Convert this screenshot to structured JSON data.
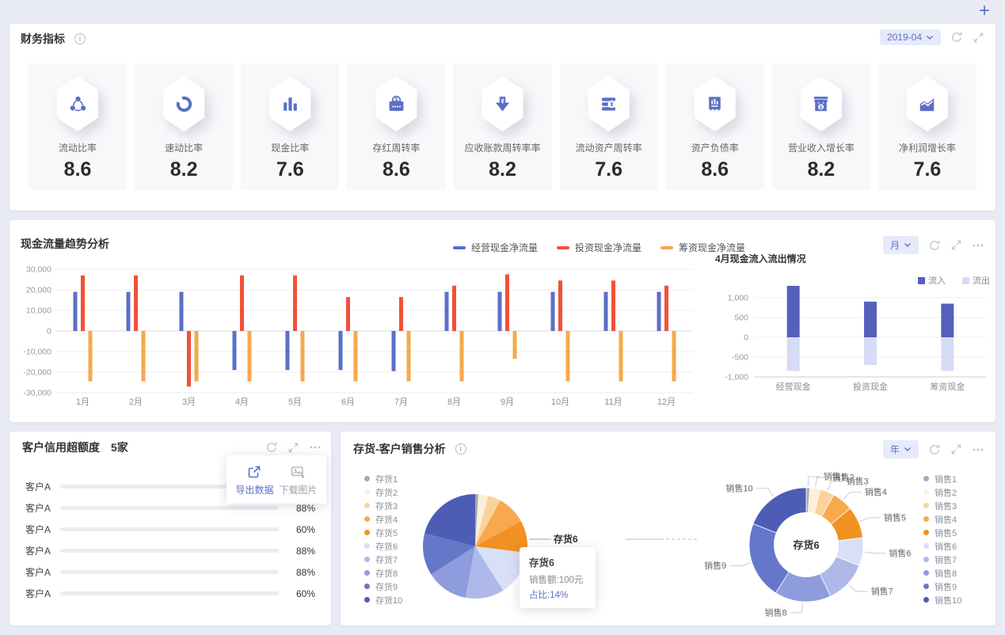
{
  "page": {
    "add_button": "+"
  },
  "kpi_panel": {
    "title": "财务指标",
    "period": "2019-04",
    "cards": [
      {
        "label": "流动比率",
        "value": "8.6",
        "icon": "share-network-icon"
      },
      {
        "label": "速动比率",
        "value": "8.2",
        "icon": "sync-icon"
      },
      {
        "label": "现金比率",
        "value": "7.6",
        "icon": "bar-chart-icon"
      },
      {
        "label": "存红周转率",
        "value": "8.6",
        "icon": "wallet-icon"
      },
      {
        "label": "应收账款周转率率",
        "value": "8.2",
        "icon": "arrow-down-yen-icon"
      },
      {
        "label": "流动资产周转率",
        "value": "7.6",
        "icon": "coins-yen-icon"
      },
      {
        "label": "资产负债率",
        "value": "8.6",
        "icon": "receipt-icon"
      },
      {
        "label": "营业收入增长率",
        "value": "8.2",
        "icon": "shop-icon"
      },
      {
        "label": "净利润增长率",
        "value": "7.6",
        "icon": "trend-icon"
      }
    ]
  },
  "cashflow_panel": {
    "title": "现金流量趋势分析",
    "period": "月",
    "legend": [
      "经营现金净流量",
      "投资现金净流量",
      "筹资现金净流量"
    ],
    "colors": [
      "#5b6fc7",
      "#f25039",
      "#f6a84c"
    ],
    "sub_title": "4月现金流入流出情况",
    "sub_legend": [
      "流入",
      "流出"
    ],
    "sub_colors": [
      "#5560bd",
      "#d6dcf5"
    ]
  },
  "credit_panel": {
    "title": "客户信用超额度",
    "subtitle": "5家",
    "menu": [
      {
        "label": "导出数据"
      },
      {
        "label": "下载图片"
      }
    ],
    "rows": [
      {
        "label": "客户A",
        "percent": 88,
        "percent_text": "88%"
      },
      {
        "label": "客户A",
        "percent": 88,
        "percent_text": "88%"
      },
      {
        "label": "客户A",
        "percent": 60,
        "percent_text": "60%"
      },
      {
        "label": "客户A",
        "percent": 88,
        "percent_text": "88%"
      },
      {
        "label": "客户A",
        "percent": 88,
        "percent_text": "88%"
      },
      {
        "label": "客户A",
        "percent": 60,
        "percent_text": "60%"
      }
    ]
  },
  "sales_panel": {
    "title": "存货-客户销售分析",
    "period": "年",
    "inventory_legend": [
      "存货1",
      "存货2",
      "存货3",
      "存货4",
      "存货5",
      "存货6",
      "存货7",
      "存货8",
      "存货9",
      "存货10"
    ],
    "sales_legend": [
      "销售1",
      "销售2",
      "销售3",
      "销售4",
      "销售5",
      "销售6",
      "销售7",
      "销售8",
      "销售9",
      "销售10"
    ],
    "palette": [
      "#a7aab2",
      "#fdf0d8",
      "#fbd29c",
      "#f8a94e",
      "#f19122",
      "#d9dff7",
      "#aeb9ea",
      "#8e9cde",
      "#6577c8",
      "#4d5db6"
    ],
    "pie_label": "存货6",
    "donut_center": "存货6",
    "tooltip": {
      "title": "存货6",
      "line1": "销售额:100元",
      "line2": "占比:14%"
    }
  },
  "chart_data": [
    {
      "id": "cashflow-trend",
      "type": "bar",
      "title": "现金流量趋势分析",
      "categories": [
        "1月",
        "2月",
        "3月",
        "4月",
        "5月",
        "6月",
        "7月",
        "8月",
        "9月",
        "10月",
        "11月",
        "12月"
      ],
      "series": [
        {
          "name": "经营现金净流量",
          "color": "#5b6fc7",
          "values": [
            19000,
            19000,
            19000,
            -19000,
            -19000,
            -19000,
            -19500,
            19000,
            19000,
            19000,
            19000,
            19000
          ]
        },
        {
          "name": "投资现金净流量",
          "color": "#f25039",
          "values": [
            27000,
            27000,
            -27000,
            27000,
            27000,
            16500,
            16500,
            22000,
            27500,
            24500,
            24500,
            22000
          ]
        },
        {
          "name": "筹资现金净流量",
          "color": "#f6a84c",
          "values": [
            -24500,
            -24500,
            -24500,
            -24500,
            -24500,
            -24500,
            -24500,
            -24500,
            -13500,
            -24500,
            -24500,
            -24500
          ]
        }
      ],
      "ylim": [
        -30000,
        30000
      ],
      "ticks": [
        30000,
        20000,
        10000,
        0,
        -10000,
        -20000,
        -30000
      ],
      "grid": true,
      "legend_position": "top"
    },
    {
      "id": "april-inout",
      "type": "bar",
      "title": "4月现金流入流出情况",
      "categories": [
        "经营现金",
        "投资现金",
        "筹资现金"
      ],
      "series": [
        {
          "name": "流入",
          "color": "#5560bd",
          "values": [
            1300,
            900,
            850
          ]
        },
        {
          "name": "流出",
          "color": "#d6dcf5",
          "values": [
            -850,
            -700,
            -850
          ]
        }
      ],
      "ylim": [
        -1000,
        1400
      ],
      "ticks": [
        1000,
        500,
        0,
        -500,
        -1000
      ],
      "grid": true,
      "legend_position": "top-right"
    },
    {
      "id": "credit-over-limit",
      "type": "bar",
      "orientation": "horizontal",
      "title": "客户信用超额度",
      "categories": [
        "客户A",
        "客户A",
        "客户A",
        "客户A",
        "客户A",
        "客户A"
      ],
      "values": [
        88,
        88,
        60,
        88,
        88,
        60
      ],
      "unit": "%",
      "xlim": [
        0,
        100
      ]
    },
    {
      "id": "inventory-pie",
      "type": "pie",
      "labels": [
        "存货1",
        "存货2",
        "存货3",
        "存货4",
        "存货5",
        "存货6",
        "存货7",
        "存货8",
        "存货9",
        "存货10"
      ],
      "values": [
        1,
        3,
        4,
        9,
        10,
        14,
        12,
        13,
        13,
        21
      ],
      "unit": "%",
      "highlight": {
        "label": "存货6",
        "sales": "销售额:100元",
        "ratio": "占比:14%"
      }
    },
    {
      "id": "sales-donut",
      "type": "pie",
      "labels": [
        "销售1",
        "销售2",
        "销售3",
        "销售4",
        "销售5",
        "销售6",
        "销售7",
        "销售8",
        "销售9",
        "销售10"
      ],
      "values": [
        1,
        3,
        4,
        6,
        9,
        8,
        12,
        16,
        22,
        19
      ],
      "unit": "%",
      "center_label": "存货6"
    }
  ]
}
